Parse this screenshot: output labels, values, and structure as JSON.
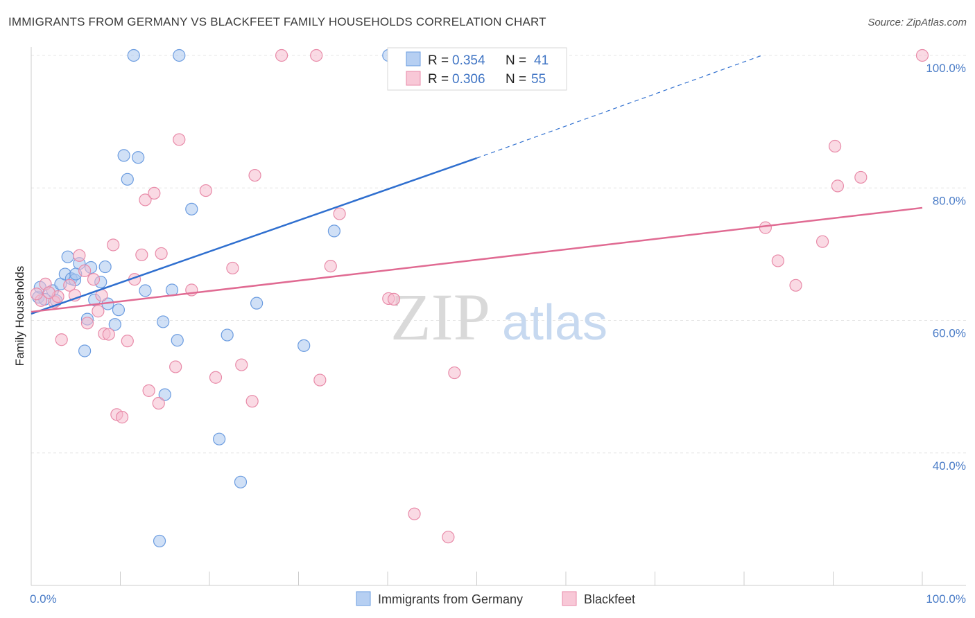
{
  "title": "IMMIGRANTS FROM GERMANY VS BLACKFEET FAMILY HOUSEHOLDS CORRELATION CHART",
  "source": "Source: ZipAtlas.com",
  "watermark": {
    "zip": "ZIP",
    "atlas": "atlas"
  },
  "chart_data": {
    "type": "scatter",
    "ylabel": "Family Households",
    "xlabel": "",
    "x_tick_labels": [
      "0.0%",
      "100.0%"
    ],
    "y_tick_labels": [
      "40.0%",
      "60.0%",
      "80.0%",
      "100.0%"
    ],
    "xlim": [
      0,
      100
    ],
    "ylim": [
      20,
      100
    ],
    "y_ticks": [
      40,
      60,
      80,
      100
    ],
    "grid": true,
    "legend_position": "top-center",
    "stats": [
      {
        "r_label": "R =",
        "r": "0.354",
        "n_label": "N =",
        "n": "41"
      },
      {
        "r_label": "R =",
        "r": "0.306",
        "n_label": "N =",
        "n": "55"
      }
    ],
    "series": [
      {
        "name": "Immigrants from Germany",
        "color": "#6b9ce0",
        "fill": "#a9c6ef",
        "line_color": "#2f6fcf",
        "trend": {
          "x0": 0,
          "y0": 61.0,
          "x1": 50,
          "y1": 84.5,
          "dash_x1": 82,
          "dash_y1": 100
        },
        "points": [
          [
            0.8,
            63.5
          ],
          [
            1.5,
            63.2
          ],
          [
            2.4,
            64.5
          ],
          [
            2.8,
            63.0
          ],
          [
            3.3,
            65.5
          ],
          [
            3.8,
            67.0
          ],
          [
            4.1,
            69.6
          ],
          [
            4.5,
            66.3
          ],
          [
            4.9,
            66.1
          ],
          [
            5.4,
            68.6
          ],
          [
            6.0,
            55.4
          ],
          [
            6.3,
            60.2
          ],
          [
            6.7,
            68.0
          ],
          [
            7.1,
            63.1
          ],
          [
            7.8,
            65.8
          ],
          [
            8.3,
            68.1
          ],
          [
            8.6,
            62.5
          ],
          [
            9.4,
            59.4
          ],
          [
            9.8,
            61.6
          ],
          [
            10.4,
            84.9
          ],
          [
            10.8,
            81.3
          ],
          [
            11.5,
            100
          ],
          [
            12.0,
            84.6
          ],
          [
            12.8,
            64.5
          ],
          [
            14.4,
            26.7
          ],
          [
            14.8,
            59.8
          ],
          [
            15.0,
            48.8
          ],
          [
            15.8,
            64.6
          ],
          [
            16.4,
            57.0
          ],
          [
            16.6,
            100
          ],
          [
            18.0,
            76.8
          ],
          [
            21.1,
            42.1
          ],
          [
            22.0,
            57.8
          ],
          [
            23.5,
            35.6
          ],
          [
            25.3,
            62.6
          ],
          [
            30.6,
            56.2
          ],
          [
            34.0,
            73.5
          ],
          [
            40.1,
            100
          ],
          [
            47.0,
            100
          ],
          [
            1.0,
            65.0
          ],
          [
            5.0,
            67.0
          ]
        ]
      },
      {
        "name": "Blackfeet",
        "color": "#e88aa8",
        "fill": "#f5bccd",
        "line_color": "#e06a92",
        "trend": {
          "x0": 0,
          "y0": 61.3,
          "x1": 100,
          "y1": 77.0
        },
        "points": [
          [
            1.1,
            63.0
          ],
          [
            1.6,
            65.5
          ],
          [
            2.6,
            62.8
          ],
          [
            3.0,
            63.6
          ],
          [
            3.4,
            57.1
          ],
          [
            4.3,
            65.3
          ],
          [
            4.9,
            63.8
          ],
          [
            5.4,
            69.8
          ],
          [
            6.0,
            67.5
          ],
          [
            6.3,
            59.6
          ],
          [
            7.0,
            66.2
          ],
          [
            7.5,
            61.4
          ],
          [
            7.9,
            63.8
          ],
          [
            8.2,
            58.0
          ],
          [
            8.7,
            57.9
          ],
          [
            9.2,
            71.4
          ],
          [
            9.6,
            45.8
          ],
          [
            10.2,
            45.4
          ],
          [
            10.8,
            56.9
          ],
          [
            11.6,
            66.2
          ],
          [
            12.4,
            69.9
          ],
          [
            12.8,
            78.2
          ],
          [
            13.2,
            49.4
          ],
          [
            13.8,
            79.2
          ],
          [
            14.3,
            47.5
          ],
          [
            14.6,
            70.1
          ],
          [
            16.2,
            53.0
          ],
          [
            16.6,
            87.3
          ],
          [
            18.0,
            64.6
          ],
          [
            19.6,
            79.6
          ],
          [
            20.7,
            51.4
          ],
          [
            22.6,
            67.9
          ],
          [
            23.6,
            53.3
          ],
          [
            24.8,
            47.8
          ],
          [
            25.1,
            81.9
          ],
          [
            28.1,
            100
          ],
          [
            32.0,
            100
          ],
          [
            32.4,
            51.0
          ],
          [
            33.6,
            68.2
          ],
          [
            34.6,
            76.1
          ],
          [
            40.1,
            63.3
          ],
          [
            40.7,
            63.2
          ],
          [
            43.0,
            30.8
          ],
          [
            46.8,
            27.3
          ],
          [
            47.5,
            52.1
          ],
          [
            82.4,
            74.0
          ],
          [
            83.8,
            69.0
          ],
          [
            85.8,
            65.3
          ],
          [
            88.8,
            71.9
          ],
          [
            90.2,
            86.3
          ],
          [
            90.5,
            80.3
          ],
          [
            93.1,
            81.6
          ],
          [
            100,
            100
          ],
          [
            0.6,
            64.0
          ],
          [
            2.0,
            64.2
          ]
        ]
      }
    ]
  }
}
